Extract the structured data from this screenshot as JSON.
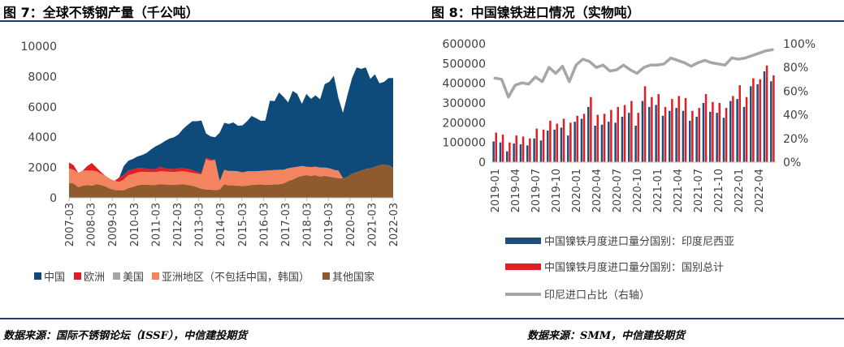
{
  "left_title": "图 7：全球不锈钢产量（千公吨）",
  "right_title": "图 8：中国镍铁进口情况（实物吨）",
  "left_source": "数据来源：国际不锈钢论坛（ISSF），中信建投期货",
  "right_source": "数据来源：SMM，中信建投期货",
  "colors": {
    "title_rule": "#1f3e77",
    "china": "#0e4a7a",
    "europe": "#e11e26",
    "usa": "#a6a6a6",
    "asia_other": "#f4845f",
    "others": "#8f5b2e",
    "indonesia_bar": "#1f4e79",
    "total_bar": "#e11e26",
    "ratio_line": "#a6a6a6"
  },
  "chart_data": [
    {
      "type": "area",
      "title": "全球不锈钢产量（千公吨）",
      "stacked": true,
      "ylim": [
        0,
        10000
      ],
      "yticks": [
        "0",
        "2000",
        "4000",
        "6000",
        "8000",
        "10000"
      ],
      "xtick_labels": [
        "2007-03",
        "2008-03",
        "2009-03",
        "2010-03",
        "2011-03",
        "2012-03",
        "2013-03",
        "2014-03",
        "2015-03",
        "2016-03",
        "2017-03",
        "2018-03",
        "2019-03",
        "2020-03",
        "2021-03",
        "2022-03"
      ],
      "x_start": "2007-03",
      "x_end": "2022-03",
      "series": [
        {
          "name": "其他国家",
          "color_key": "others",
          "values": [
            980,
            950,
            700,
            800,
            850,
            800,
            900,
            850,
            750,
            600,
            520,
            500,
            500,
            650,
            720,
            820,
            870,
            860,
            840,
            850,
            900,
            880,
            860,
            850,
            880,
            900,
            850,
            800,
            700,
            600,
            550,
            550,
            500,
            550,
            900,
            820,
            820,
            800,
            780,
            800,
            850,
            870,
            880,
            850,
            860,
            880,
            900,
            950,
            1100,
            1200,
            1350,
            1450,
            1500,
            1450,
            1500,
            1400,
            1450,
            1400,
            1350,
            1300,
            1300,
            1400,
            1600,
            1700,
            1800,
            1900,
            1950,
            2050,
            2150,
            2200,
            2150,
            2000
          ]
        },
        {
          "name": "亚洲地区（不包括中国，韩国）",
          "color_key": "asia_other",
          "values": [
            950,
            900,
            950,
            1000,
            950,
            1000,
            850,
            750,
            700,
            650,
            600,
            550,
            700,
            850,
            850,
            860,
            850,
            850,
            860,
            850,
            850,
            860,
            850,
            850,
            860,
            850,
            860,
            850,
            900,
            950,
            2000,
            1900,
            2000,
            550,
            950,
            950,
            950,
            950,
            900,
            950,
            900,
            880,
            900,
            950,
            950,
            950,
            950,
            900,
            850,
            800,
            700,
            650,
            550,
            580,
            560,
            600,
            550,
            550,
            500,
            500,
            0,
            0,
            0,
            0,
            0,
            0,
            0,
            0,
            0,
            0,
            0,
            0
          ]
        },
        {
          "name": "美国",
          "color_key": "usa",
          "values": [
            0,
            0,
            0,
            0,
            0,
            0,
            0,
            0,
            0,
            0,
            0,
            0,
            0,
            0,
            0,
            0,
            0,
            0,
            0,
            0,
            0,
            0,
            0,
            0,
            0,
            0,
            0,
            0,
            0,
            0,
            0,
            0,
            0,
            0,
            0,
            0,
            0,
            0,
            0,
            0,
            0,
            0,
            0,
            0,
            0,
            0,
            0,
            0,
            0,
            0,
            0,
            0,
            0,
            0,
            0,
            0,
            0,
            0,
            0,
            0,
            0,
            0,
            0,
            0,
            0,
            0,
            0,
            0,
            0,
            0,
            0,
            0
          ]
        },
        {
          "name": "欧洲",
          "color_key": "europe",
          "values": [
            400,
            300,
            0,
            0,
            300,
            500,
            250,
            100,
            0,
            0,
            0,
            300,
            300,
            300,
            300,
            300,
            250,
            200,
            200,
            200,
            300,
            200,
            200,
            200,
            200,
            200,
            200,
            200,
            100,
            100,
            100,
            100,
            0,
            0,
            0,
            0,
            0,
            0,
            0,
            0,
            0,
            0,
            0,
            0,
            0,
            0,
            0,
            0,
            0,
            0,
            0,
            0,
            0,
            0,
            0,
            0,
            0,
            0,
            0,
            0,
            0,
            0,
            0,
            0,
            0,
            0,
            0,
            0,
            0,
            0,
            0,
            0
          ]
        },
        {
          "name": "中国",
          "color_key": "china",
          "values": [
            0,
            0,
            0,
            0,
            0,
            0,
            0,
            0,
            0,
            0,
            0,
            0,
            600,
            650,
            700,
            750,
            850,
            1050,
            1300,
            1500,
            1500,
            1800,
            2000,
            2100,
            2250,
            2600,
            2900,
            3200,
            3350,
            3450,
            1600,
            1500,
            1500,
            3200,
            3100,
            3100,
            3200,
            3000,
            3100,
            3300,
            3650,
            3500,
            3300,
            3300,
            4600,
            4550,
            5100,
            4800,
            4350,
            5050,
            4800,
            4100,
            4800,
            4500,
            4700,
            4500,
            5500,
            5700,
            6200,
            4800,
            4300,
            5400,
            6300,
            6900,
            6700,
            6700,
            5900,
            6100,
            5400,
            5450,
            5750,
            5900
          ]
        }
      ]
    },
    {
      "type": "bar",
      "title": "中国镍铁进口情况（实物吨）",
      "ylim": [
        0,
        600000
      ],
      "yticks": [
        "0",
        "100000",
        "200000",
        "300000",
        "400000",
        "500000",
        "600000"
      ],
      "y2lim": [
        0,
        100
      ],
      "y2ticks": [
        "0%",
        "20%",
        "40%",
        "60%",
        "80%",
        "100%"
      ],
      "categories": [
        "2019-01",
        "2019-02",
        "2019-03",
        "2019-04",
        "2019-05",
        "2019-06",
        "2019-07",
        "2019-08",
        "2019-09",
        "2019-10",
        "2019-11",
        "2019-12",
        "2020-01",
        "2020-02",
        "2020-03",
        "2020-04",
        "2020-05",
        "2020-06",
        "2020-07",
        "2020-08",
        "2020-09",
        "2020-10",
        "2020-11",
        "2020-12",
        "2021-01",
        "2021-02",
        "2021-03",
        "2021-04",
        "2021-05",
        "2021-06",
        "2021-07",
        "2021-08",
        "2021-09",
        "2021-10",
        "2021-11",
        "2021-12",
        "2022-01",
        "2022-02",
        "2022-03",
        "2022-04",
        "2022-05",
        "2022-06"
      ],
      "tick_labels": [
        "2019-01",
        "2019-04",
        "2019-07",
        "2019-10",
        "2020-01",
        "2020-04",
        "2020-07",
        "2020-10",
        "2021-01",
        "2021-04",
        "2021-07",
        "2021-10",
        "2022-01",
        "2022-04"
      ],
      "series": [
        {
          "name": "中国镍铁月度进口量分国别：印度尼西亚",
          "color_key": "indonesia_bar",
          "axis": "left",
          "values": [
            105000,
            100000,
            55000,
            95000,
            90000,
            85000,
            120000,
            110000,
            160000,
            165000,
            175000,
            135000,
            205000,
            220000,
            280000,
            185000,
            190000,
            205000,
            200000,
            230000,
            250000,
            185000,
            310000,
            280000,
            290000,
            235000,
            260000,
            275000,
            260000,
            210000,
            230000,
            300000,
            255000,
            250000,
            225000,
            310000,
            320000,
            280000,
            385000,
            395000,
            460000,
            410000
          ]
        },
        {
          "name": "中国镍铁月度进口量分国别：国别总计",
          "color_key": "total_bar",
          "axis": "left",
          "values": [
            150000,
            140000,
            100000,
            135000,
            130000,
            120000,
            170000,
            165000,
            210000,
            195000,
            220000,
            200000,
            235000,
            245000,
            330000,
            240000,
            245000,
            265000,
            280000,
            290000,
            310000,
            250000,
            385000,
            330000,
            345000,
            280000,
            320000,
            335000,
            325000,
            260000,
            275000,
            345000,
            305000,
            300000,
            275000,
            335000,
            390000,
            330000,
            425000,
            420000,
            490000,
            440000
          ]
        },
        {
          "name": "印尼进口占比（右轴）",
          "color_key": "ratio_line",
          "axis": "right",
          "type": "line",
          "values": [
            71,
            70,
            55,
            65,
            67,
            66,
            72,
            68,
            80,
            75,
            81,
            68,
            82,
            87,
            85,
            80,
            82,
            77,
            78,
            82,
            78,
            75,
            80,
            82,
            82,
            83,
            88,
            86,
            84,
            81,
            84,
            86,
            84,
            83,
            82,
            88,
            87,
            88,
            90,
            92,
            94,
            95
          ]
        }
      ]
    }
  ]
}
